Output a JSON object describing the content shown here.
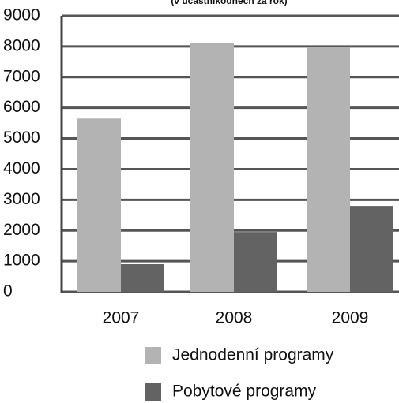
{
  "chart_data": {
    "type": "bar",
    "subtitle": "(v účastníkodnech za rok)",
    "categories": [
      "2007",
      "2008",
      "2009"
    ],
    "series": [
      {
        "name": "Jednodenní programy",
        "color": "#b3b3b3",
        "values": [
          5650,
          8100,
          7950
        ]
      },
      {
        "name": "Pobytové programy",
        "color": "#636363",
        "values": [
          900,
          1950,
          2800
        ]
      }
    ],
    "ylim": [
      0,
      9000
    ],
    "yticks": [
      0,
      1000,
      2000,
      3000,
      4000,
      5000,
      6000,
      7000,
      8000,
      9000
    ],
    "grid": true,
    "legend": "bottom"
  }
}
